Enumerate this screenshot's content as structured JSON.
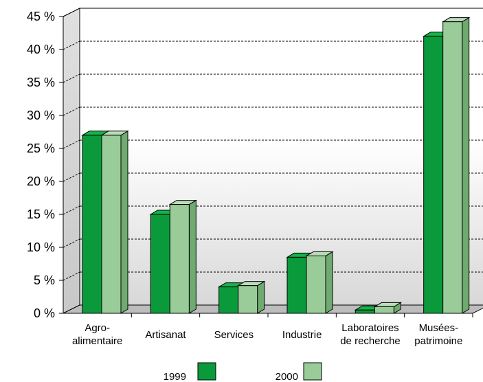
{
  "chart_data": {
    "type": "bar",
    "title": "",
    "xlabel": "",
    "ylabel": "",
    "ylim": [
      0,
      45
    ],
    "y_ticks": [
      "0 %",
      "5 %",
      "10 %",
      "15 %",
      "20 %",
      "25 %",
      "30 %",
      "35 %",
      "40 %",
      "45 %"
    ],
    "categories": [
      [
        "Agro-",
        "alimentaire"
      ],
      [
        "Artisanat"
      ],
      [
        "Services"
      ],
      [
        "Industrie"
      ],
      [
        "Laboratoires",
        "de recherche"
      ],
      [
        "Musées-",
        "patrimoine"
      ]
    ],
    "series": [
      {
        "name": "1999",
        "values": [
          27,
          15,
          4,
          8.5,
          0.5,
          42
        ],
        "color": "#0a9a3c"
      },
      {
        "name": "2000",
        "values": [
          27,
          16.5,
          4.2,
          8.7,
          1.0,
          44.2
        ],
        "color": "#99cc99"
      }
    ],
    "grid": "dashed horizontal",
    "legend_position": "bottom"
  }
}
